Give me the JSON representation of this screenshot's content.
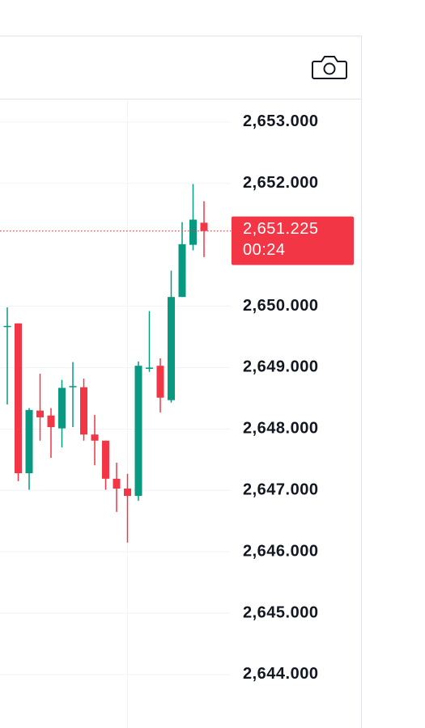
{
  "chart_data": {
    "type": "candlestick",
    "open": [
      2649.67,
      2649.72,
      2647.28,
      2648.3,
      2648.22,
      2648.01,
      2648.68,
      2648.68,
      2647.91,
      2647.81,
      2647.19,
      2647.03,
      2646.91,
      2648.98,
      2649.03,
      2648.47,
      2650.15,
      2651.0,
      2651.36
    ],
    "high": [
      2649.98,
      2649.72,
      2648.34,
      2648.9,
      2648.34,
      2648.8,
      2649.09,
      2648.82,
      2648.23,
      2647.81,
      2647.45,
      2647.27,
      2649.1,
      2649.92,
      2649.15,
      2650.58,
      2651.37,
      2651.99,
      2651.71
    ],
    "low": [
      2648.4,
      2647.15,
      2647.01,
      2647.81,
      2647.53,
      2647.7,
      2648.03,
      2647.81,
      2647.41,
      2647.01,
      2646.65,
      2646.15,
      2646.83,
      2648.93,
      2648.27,
      2648.43,
      2650.15,
      2650.91,
      2650.8
    ],
    "close": [
      2649.68,
      2647.28,
      2648.31,
      2648.19,
      2648.03,
      2648.67,
      2648.7,
      2647.91,
      2647.81,
      2647.19,
      2647.03,
      2646.91,
      2649.03,
      2649.0,
      2648.51,
      2650.15,
      2651.01,
      2651.41,
      2651.225
    ],
    "up_color": "#089981",
    "down_color": "#f23645",
    "ylim": [
      2643.13,
      2653.38
    ],
    "yticks": [
      {
        "value": 2653,
        "label": "2,653.000"
      },
      {
        "value": 2652,
        "label": "2,652.000"
      },
      {
        "value": 2650,
        "label": "2,650.000"
      },
      {
        "value": 2649,
        "label": "2,649.000"
      },
      {
        "value": 2648,
        "label": "2,648.000"
      },
      {
        "value": 2647,
        "label": "2,647.000"
      },
      {
        "value": 2646,
        "label": "2,646.000"
      },
      {
        "value": 2645,
        "label": "2,645.000"
      },
      {
        "value": 2644,
        "label": "2,644.000"
      }
    ],
    "grid": true,
    "last_price": {
      "value": 2651.225,
      "label": "2,651.225"
    },
    "countdown": "00:24"
  }
}
